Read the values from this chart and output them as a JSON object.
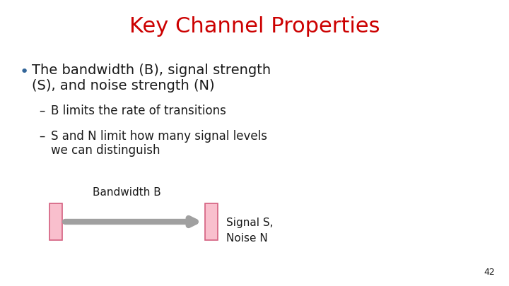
{
  "title": "Key Channel Properties",
  "title_color": "#cc0000",
  "title_fontsize": 22,
  "title_fontweight": "normal",
  "title_fontstyle": "normal",
  "background_color": "#ffffff",
  "bullet_text_line1": "The bandwidth (B), signal strength",
  "bullet_text_line2": "(S), and noise strength (N)",
  "sub_bullet1": "B limits the rate of transitions",
  "sub_bullet2_line1": "S and N limit how many signal levels",
  "sub_bullet2_line2": "we can distinguish",
  "bandwidth_label": "Bandwidth B",
  "signal_label": "Signal S,\nNoise N",
  "box_color": "#f9bfcd",
  "box_edge_color": "#d46080",
  "arrow_color": "#a0a0a0",
  "text_color": "#1a1a1a",
  "bullet_color": "#336699",
  "page_number": "42",
  "fontsize_body": 14,
  "fontsize_sub": 12,
  "fontsize_diagram": 11
}
